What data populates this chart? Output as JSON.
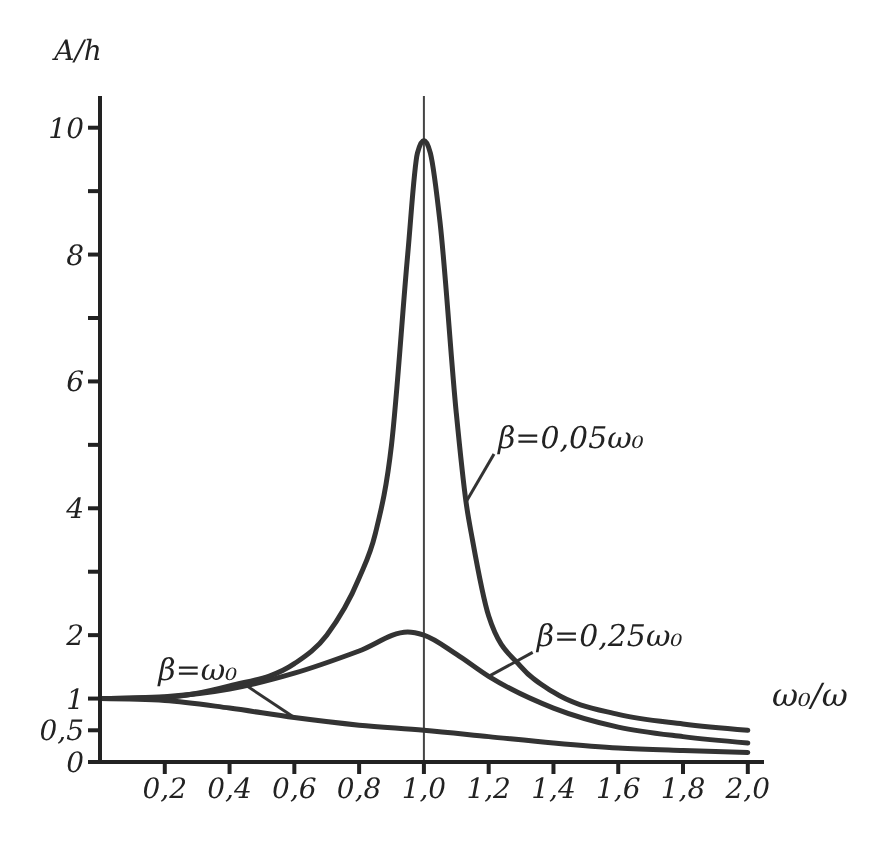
{
  "chart_data": {
    "type": "line",
    "ylabel": "A/h",
    "xlabel": "ω₀/ω",
    "xlim": [
      0,
      2.05
    ],
    "ylim": [
      0,
      10.5
    ],
    "xticks": [
      {
        "value": 0.2,
        "label": "0,2"
      },
      {
        "value": 0.4,
        "label": "0,4"
      },
      {
        "value": 0.6,
        "label": "0,6"
      },
      {
        "value": 0.8,
        "label": "0,8"
      },
      {
        "value": 1.0,
        "label": "1,0"
      },
      {
        "value": 1.2,
        "label": "1,2"
      },
      {
        "value": 1.4,
        "label": "1,4"
      },
      {
        "value": 1.6,
        "label": "1,6"
      },
      {
        "value": 1.8,
        "label": "1,8"
      },
      {
        "value": 2.0,
        "label": "2,0"
      }
    ],
    "yticks": [
      0,
      {
        "value": 0.5,
        "label": "0,5"
      },
      1,
      2,
      {
        "value": 3,
        "label": null
      },
      4,
      {
        "value": 5,
        "label": null
      },
      6,
      {
        "value": 7,
        "label": null
      },
      8,
      {
        "value": 9,
        "label": null
      },
      10
    ],
    "grid": false,
    "marker": "none",
    "line_style": "solid",
    "series": [
      {
        "color": "#333333",
        "x": [
          0,
          0.2,
          0.4,
          0.6,
          0.7,
          0.8,
          0.85,
          0.9,
          0.95,
          0.98,
          1.0,
          1.02,
          1.05,
          1.1,
          1.13,
          1.15,
          1.2,
          1.3,
          1.4,
          1.6,
          1.8,
          2.0
        ],
        "values": [
          1.0,
          1.02,
          1.2,
          1.55,
          2.0,
          2.9,
          3.6,
          5.0,
          8.0,
          9.6,
          9.8,
          9.6,
          8.5,
          5.5,
          4.1,
          3.5,
          2.3,
          1.5,
          1.1,
          0.75,
          0.6,
          0.5
        ]
      },
      {
        "color": "#333333",
        "x": [
          0,
          0.2,
          0.4,
          0.6,
          0.8,
          0.95,
          1.0,
          1.1,
          1.2,
          1.4,
          1.6,
          1.8,
          2.0
        ],
        "values": [
          1.0,
          1.03,
          1.15,
          1.4,
          1.75,
          2.05,
          2.0,
          1.7,
          1.35,
          0.85,
          0.55,
          0.4,
          0.3
        ]
      },
      {
        "color": "#333333",
        "x": [
          0,
          0.2,
          0.4,
          0.6,
          0.8,
          1.0,
          1.2,
          1.4,
          1.6,
          1.8,
          2.0
        ],
        "values": [
          1.0,
          0.97,
          0.85,
          0.7,
          0.58,
          0.5,
          0.4,
          0.3,
          0.22,
          0.18,
          0.15
        ]
      }
    ],
    "ref_lines": [
      {
        "axis": "x",
        "value": 1.0,
        "color": "#444444"
      }
    ],
    "annotations": [
      {
        "text": "β=0,05ω₀",
        "x": 1.13,
        "y": 4.1
      },
      {
        "text": "β=0,25ω₀",
        "x": 1.2,
        "y": 1.35
      },
      {
        "text": "β=ω₀",
        "x": 0.6,
        "y": 0.7
      }
    ]
  }
}
